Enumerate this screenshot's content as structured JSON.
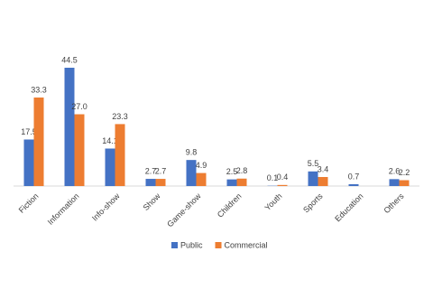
{
  "chart_data": {
    "type": "bar",
    "categories": [
      "Fiction",
      "Information",
      "Info-show",
      "Show",
      "Game-show",
      "Children",
      "Youth",
      "Sports",
      "Education",
      "Others"
    ],
    "series": [
      {
        "name": "Public",
        "color": "#4472c4",
        "values": [
          17.5,
          44.5,
          14.1,
          2.7,
          9.8,
          2.5,
          0.1,
          5.5,
          0.7,
          2.6
        ]
      },
      {
        "name": "Commercial",
        "color": "#ed7d31",
        "values": [
          33.3,
          27.0,
          23.3,
          2.7,
          4.9,
          2.8,
          0.4,
          3.4,
          null,
          2.2
        ],
        "value_labels": [
          "33.3",
          "27.0",
          "23.3",
          "2.7",
          "4.9",
          "2.8",
          "0.4",
          "3.4",
          null,
          "2.2"
        ]
      }
    ],
    "legend": "bottom"
  }
}
